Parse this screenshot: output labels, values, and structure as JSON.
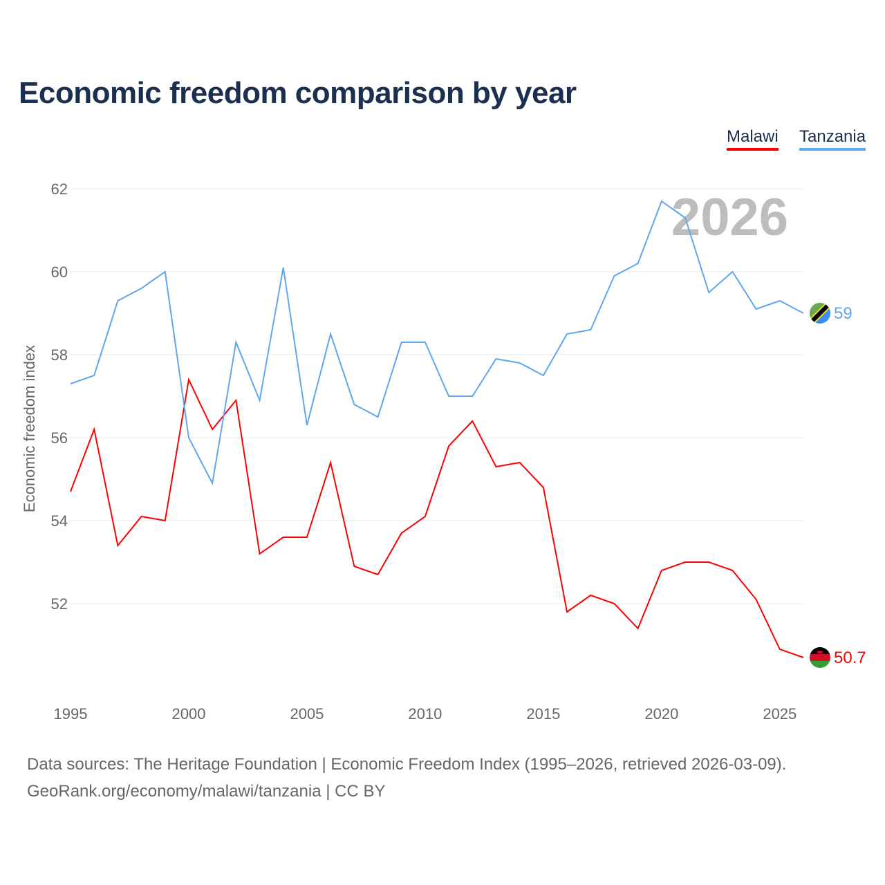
{
  "title": "Economic freedom comparison by year",
  "footer": {
    "line1": "Data sources: The Heritage Foundation | Economic Freedom Index (1995–2026, retrieved 2026-03-09).",
    "line2": "GeoRank.org/economy/malawi/tanzania | CC BY"
  },
  "chart_data": {
    "type": "line",
    "title": "Economic freedom comparison by year",
    "xlabel": "",
    "ylabel": "Economic freedom index",
    "year_watermark": "2026",
    "x": [
      1995,
      1996,
      1997,
      1998,
      1999,
      2000,
      2001,
      2002,
      2003,
      2004,
      2005,
      2006,
      2007,
      2008,
      2009,
      2010,
      2011,
      2012,
      2013,
      2014,
      2015,
      2016,
      2017,
      2018,
      2019,
      2020,
      2021,
      2022,
      2023,
      2024,
      2025,
      2026
    ],
    "xlim": [
      1995,
      2026
    ],
    "ylim": [
      50,
      62
    ],
    "xticks": [
      1995,
      2000,
      2005,
      2010,
      2015,
      2020,
      2025
    ],
    "yticks": [
      52,
      54,
      56,
      58,
      60,
      62
    ],
    "grid": true,
    "legend_placement": "top-right",
    "series": [
      {
        "name": "Malawi",
        "color": "#ff0000",
        "end_label": "50.7",
        "flag": "malawi-flag",
        "values": [
          54.7,
          56.2,
          53.4,
          54.1,
          54.0,
          57.4,
          56.2,
          56.9,
          53.2,
          53.6,
          53.6,
          55.4,
          52.9,
          52.7,
          53.7,
          54.1,
          55.8,
          56.4,
          55.3,
          55.4,
          54.8,
          51.8,
          52.2,
          52.0,
          51.4,
          52.8,
          53.0,
          53.0,
          52.8,
          52.1,
          50.9,
          50.7
        ]
      },
      {
        "name": "Tanzania",
        "color": "#5ea7ee",
        "end_label": "59",
        "flag": "tanzania-flag",
        "values": [
          57.3,
          57.5,
          59.3,
          59.6,
          60.0,
          56.0,
          54.9,
          58.3,
          56.9,
          60.1,
          56.3,
          58.5,
          56.8,
          56.5,
          58.3,
          58.3,
          57.0,
          57.0,
          57.9,
          57.8,
          57.5,
          58.5,
          58.6,
          59.9,
          60.2,
          61.7,
          61.3,
          59.5,
          60.0,
          59.1,
          59.3,
          59.0
        ]
      }
    ]
  }
}
